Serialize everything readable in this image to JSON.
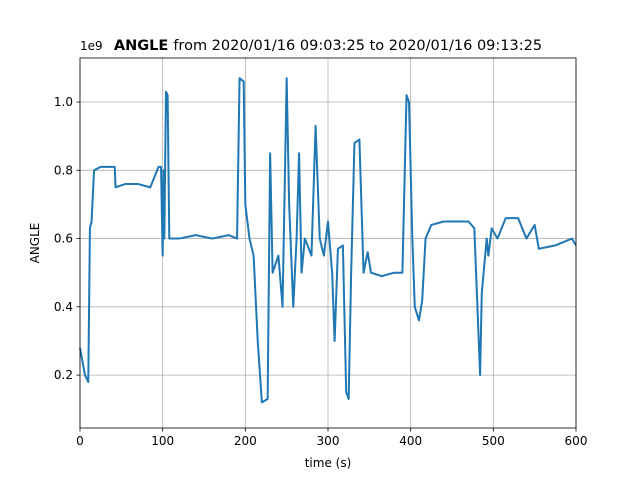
{
  "chart_data": {
    "type": "line",
    "title_name": "ANGLE",
    "title": "from 2020/01/16 09:03:25 to 2020/01/16 09:13:25",
    "xlabel": "time (s)",
    "ylabel": "ANGLE",
    "y_offset": "1e9",
    "xlim": [
      0,
      600
    ],
    "ylim": [
      0.045,
      1.129
    ],
    "xticks": [
      0,
      100,
      200,
      300,
      400,
      500,
      600
    ],
    "yticks": [
      0.2,
      0.4,
      0.6,
      0.8,
      {
        "value": 1.0,
        "label": "1.0"
      }
    ],
    "grid": true,
    "series": [
      {
        "color": "#1f77b4",
        "x": [
          0,
          3,
          6,
          10,
          12,
          14,
          17,
          25,
          35,
          42,
          43,
          55,
          70,
          85,
          95,
          98,
          100,
          101,
          102,
          104,
          106,
          108,
          120,
          140,
          160,
          180,
          190,
          193,
          198,
          200,
          205,
          210,
          215,
          220,
          227,
          230,
          233,
          240,
          245,
          250,
          253,
          258,
          262,
          265,
          268,
          272,
          280,
          285,
          290,
          295,
          300,
          305,
          308,
          312,
          318,
          322,
          325,
          328,
          332,
          338,
          343,
          348,
          352,
          365,
          380,
          390,
          395,
          398,
          402,
          405,
          410,
          414,
          418,
          425,
          440,
          470,
          477,
          484,
          486,
          492,
          494,
          498,
          505,
          515,
          530,
          540,
          550,
          555,
          575,
          595,
          600
        ],
        "values": [
          0.28,
          0.24,
          0.2,
          0.18,
          0.63,
          0.65,
          0.8,
          0.81,
          0.81,
          0.81,
          0.75,
          0.76,
          0.76,
          0.75,
          0.81,
          0.81,
          0.55,
          0.8,
          0.6,
          1.03,
          1.02,
          0.6,
          0.6,
          0.61,
          0.6,
          0.61,
          0.6,
          1.07,
          1.06,
          0.7,
          0.6,
          0.55,
          0.3,
          0.12,
          0.13,
          0.85,
          0.5,
          0.55,
          0.4,
          1.07,
          0.7,
          0.4,
          0.6,
          0.85,
          0.5,
          0.6,
          0.55,
          0.93,
          0.6,
          0.55,
          0.65,
          0.5,
          0.3,
          0.57,
          0.58,
          0.15,
          0.13,
          0.5,
          0.88,
          0.89,
          0.5,
          0.56,
          0.5,
          0.49,
          0.5,
          0.5,
          1.02,
          1.0,
          0.6,
          0.4,
          0.36,
          0.42,
          0.6,
          0.64,
          0.65,
          0.65,
          0.63,
          0.2,
          0.44,
          0.6,
          0.55,
          0.63,
          0.6,
          0.66,
          0.66,
          0.6,
          0.64,
          0.57,
          0.58,
          0.6,
          0.58
        ]
      }
    ]
  }
}
